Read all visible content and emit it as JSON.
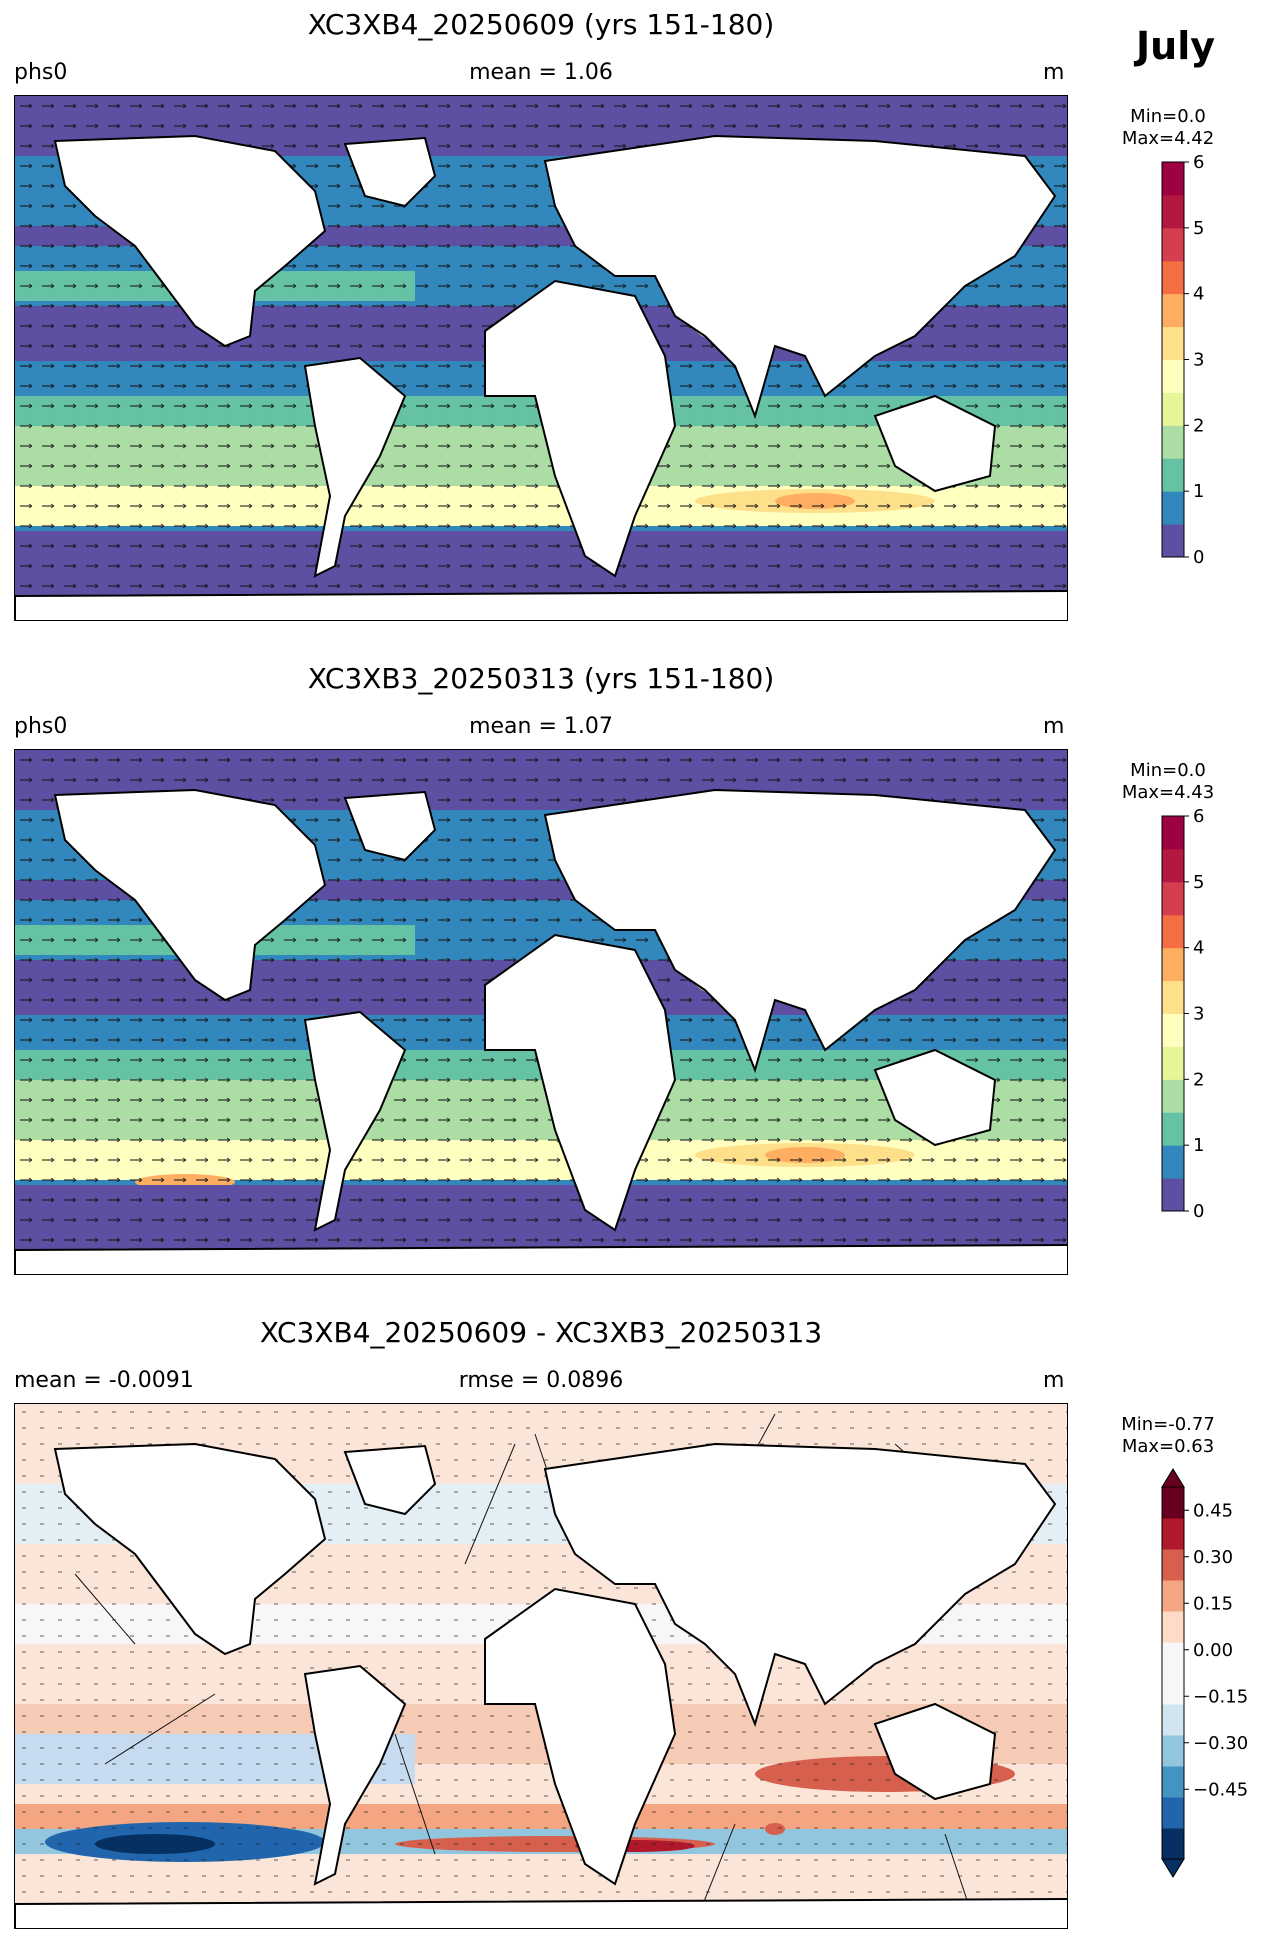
{
  "header": {
    "month": "July"
  },
  "panels": [
    {
      "title": "XC3XB4_20250609 (yrs 151-180)",
      "left": "phs0",
      "center": "mean = 1.06",
      "units": "m",
      "stat_min": "Min=0.0",
      "stat_max": "Max=4.42",
      "colorbar": {
        "ticks": [
          "0",
          "1",
          "2",
          "3",
          "4",
          "5",
          "6"
        ],
        "colors": [
          "#5e4fa2",
          "#3288bd",
          "#66c2a5",
          "#abdda4",
          "#e6f598",
          "#ffffbf",
          "#fee08b",
          "#fdae61",
          "#f46d43",
          "#d53e4f",
          "#b5183f",
          "#9e0142"
        ]
      }
    },
    {
      "title": "XC3XB3_20250313 (yrs 151-180)",
      "left": "phs0",
      "center": "mean = 1.07",
      "units": "m",
      "stat_min": "Min=0.0",
      "stat_max": "Max=4.43",
      "colorbar": {
        "ticks": [
          "0",
          "1",
          "2",
          "3",
          "4",
          "5",
          "6"
        ],
        "colors": [
          "#5e4fa2",
          "#3288bd",
          "#66c2a5",
          "#abdda4",
          "#e6f598",
          "#ffffbf",
          "#fee08b",
          "#fdae61",
          "#f46d43",
          "#d53e4f",
          "#b5183f",
          "#9e0142"
        ]
      }
    },
    {
      "title": "XC3XB4_20250609 - XC3XB3_20250313",
      "left": "mean = -0.0091",
      "center": "rmse = 0.0896",
      "units": "m",
      "stat_min": "Min=-0.77",
      "stat_max": "Max=0.63",
      "colorbar": {
        "ticks": [
          "−0.45",
          "−0.30",
          "−0.15",
          "0.00",
          "0.15",
          "0.30",
          "0.45"
        ],
        "colors": [
          "#053061",
          "#2166ac",
          "#4393c3",
          "#92c5de",
          "#d1e5f0",
          "#f7f7f7",
          "#f7f7f7",
          "#fddbc7",
          "#f4a582",
          "#d6604d",
          "#b2182b",
          "#67001f"
        ]
      }
    }
  ]
}
